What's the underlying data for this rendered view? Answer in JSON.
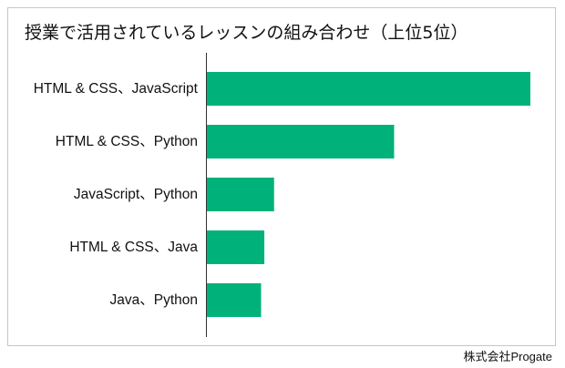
{
  "chart_data": {
    "type": "bar",
    "orientation": "horizontal",
    "title": "授業で活用されているレッスンの組み合わせ（上位5位）",
    "categories": [
      "HTML & CSS、JavaScript",
      "HTML & CSS、Python",
      "JavaScript、Python",
      "HTML & CSS、Java",
      "Java、Python"
    ],
    "values": [
      100,
      58,
      21,
      18,
      17
    ],
    "xlabel": "",
    "ylabel": "",
    "grid": false,
    "legend": "none",
    "colors": {
      "bar": "#00b27a",
      "axis": "#333333"
    }
  },
  "footer": {
    "credit": "株式会社Progate"
  }
}
